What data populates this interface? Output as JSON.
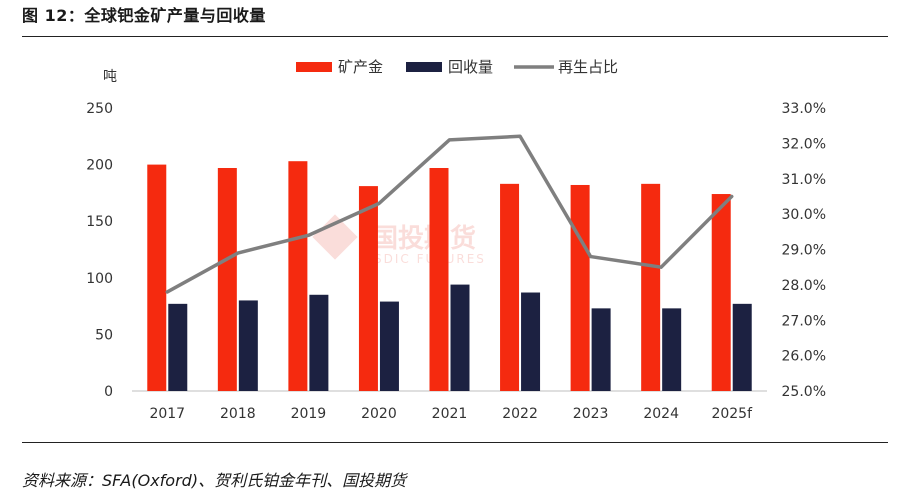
{
  "figure": {
    "title": "图 12：全球钯金矿产量与回收量",
    "source": "资料来源：SFA(Oxford)、贺利氏铂金年刊、国投期货",
    "watermark": {
      "cn": "国投期货",
      "en": "SDIC FUTURES"
    }
  },
  "chart_data": {
    "type": "bar",
    "title": "全球钯金矿产量与回收量",
    "categories": [
      "2017",
      "2018",
      "2019",
      "2020",
      "2021",
      "2022",
      "2023",
      "2024",
      "2025f"
    ],
    "series": [
      {
        "name": "矿产金",
        "type": "bar",
        "axis": "left",
        "color": "#f52a0f",
        "values": [
          200,
          197,
          203,
          181,
          197,
          183,
          182,
          183,
          174
        ]
      },
      {
        "name": "回收量",
        "type": "bar",
        "axis": "left",
        "color": "#1c2141",
        "values": [
          77,
          80,
          85,
          79,
          94,
          87,
          73,
          73,
          77
        ]
      },
      {
        "name": "再生占比",
        "type": "line",
        "axis": "right",
        "color": "#7f7f7f",
        "values": [
          27.8,
          28.9,
          29.4,
          30.3,
          32.1,
          32.2,
          28.8,
          28.5,
          30.5
        ]
      }
    ],
    "left_axis": {
      "label": "吨",
      "ylim": [
        0,
        250
      ],
      "ticks": [
        "0",
        "50",
        "100",
        "150",
        "200",
        "250"
      ]
    },
    "right_axis": {
      "ylim": [
        25.0,
        33.0
      ],
      "ticks": [
        "25.0%",
        "26.0%",
        "27.0%",
        "28.0%",
        "29.0%",
        "30.0%",
        "31.0%",
        "32.0%",
        "33.0%"
      ]
    },
    "legend": {
      "position": "top-center",
      "entries": [
        "矿产金",
        "回收量",
        "再生占比"
      ]
    },
    "grid": false
  }
}
